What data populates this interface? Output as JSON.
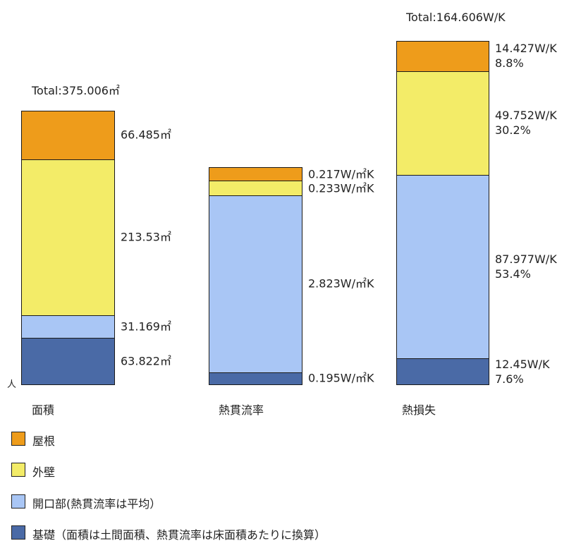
{
  "chart_data": {
    "type": "bar",
    "stacked": true,
    "colors": {
      "roof": "#EE9C1B",
      "wall": "#F3EC68",
      "opening": "#A9C6F5",
      "base": "#4A6AA6"
    },
    "legend": [
      {
        "key": "roof",
        "label": "屋根"
      },
      {
        "key": "wall",
        "label": "外壁"
      },
      {
        "key": "opening",
        "label": "開口部(熱貫流率は平均）"
      },
      {
        "key": "base",
        "label": "基礎（面積は土間面積、熱貫流率は床面積あたりに換算）"
      }
    ],
    "legend_placement": "bottom-left",
    "axis_mark": "人",
    "charts": [
      {
        "category": "面積",
        "total_label": "Total:375.006㎡",
        "total": 375.006,
        "segments": [
          {
            "key": "base",
            "value": 63.822,
            "label": "63.822㎡"
          },
          {
            "key": "opening",
            "value": 31.169,
            "label": "31.169㎡"
          },
          {
            "key": "wall",
            "value": 213.53,
            "label": "213.53㎡"
          },
          {
            "key": "roof",
            "value": 66.485,
            "label": "66.485㎡"
          }
        ]
      },
      {
        "category": "熱貫流率",
        "total_label": "",
        "total": 3.468,
        "segments": [
          {
            "key": "base",
            "value": 0.195,
            "label": "0.195W/㎡K"
          },
          {
            "key": "opening",
            "value": 2.823,
            "label": "2.823W/㎡K"
          },
          {
            "key": "wall",
            "value": 0.233,
            "label": "0.233W/㎡K"
          },
          {
            "key": "roof",
            "value": 0.217,
            "label": "0.217W/㎡K"
          }
        ]
      },
      {
        "category": "熱損失",
        "total_label": "Total:164.606W/K",
        "total": 164.606,
        "segments": [
          {
            "key": "base",
            "value": 12.45,
            "label": "12.45W/K",
            "pct": "7.6%"
          },
          {
            "key": "opening",
            "value": 87.977,
            "label": "87.977W/K",
            "pct": "53.4%"
          },
          {
            "key": "wall",
            "value": 49.752,
            "label": "49.752W/K",
            "pct": "30.2%"
          },
          {
            "key": "roof",
            "value": 14.427,
            "label": "14.427W/K",
            "pct": "8.8%"
          }
        ]
      }
    ]
  }
}
